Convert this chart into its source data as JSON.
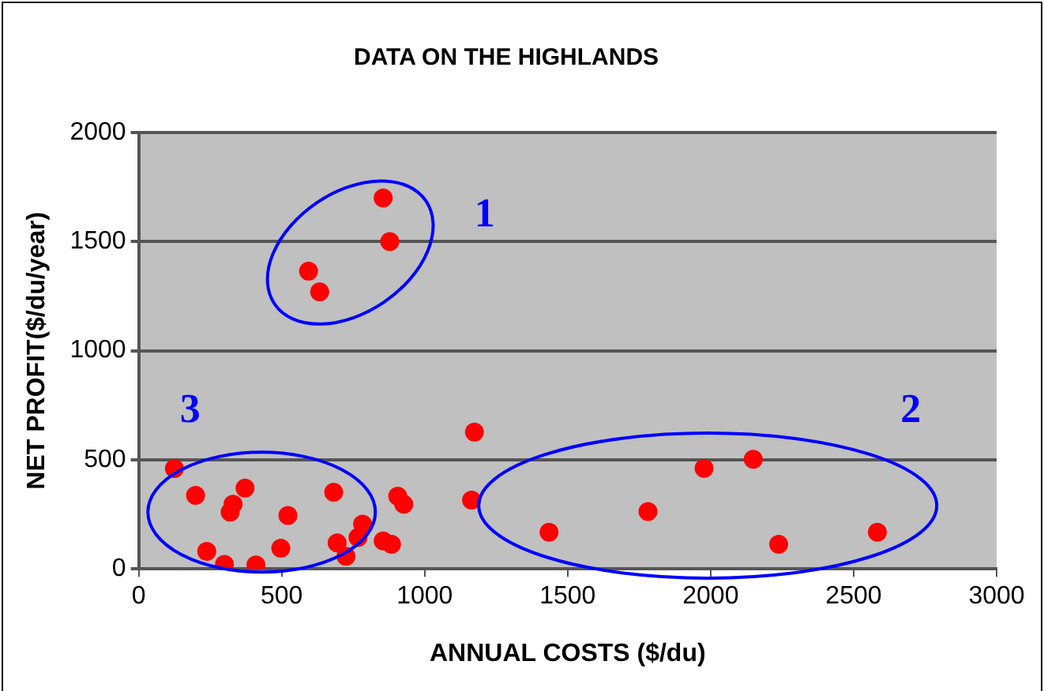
{
  "chart_data": {
    "type": "scatter",
    "title": "DATA ON THE HIGHLANDS",
    "xlabel": "ANNUAL COSTS ($/du)",
    "ylabel": "NET PROFIT($/du/year)",
    "x": [
      855,
      878,
      594,
      633,
      125,
      199,
      372,
      330,
      320,
      522,
      682,
      238,
      300,
      410,
      497,
      694,
      725,
      767,
      783,
      855,
      884,
      906,
      927,
      1174,
      1164,
      1435,
      1977,
      2149,
      1781,
      2238,
      2583
    ],
    "series": [
      {
        "color": "#ff0000",
        "values": [
          1700,
          1500,
          1365,
          1270,
          460,
          337,
          370,
          296,
          260,
          245,
          351,
          80,
          21,
          18,
          95,
          119,
          58,
          144,
          205,
          128,
          113,
          333,
          296,
          627,
          315,
          168,
          461,
          502,
          263,
          113,
          168
        ]
      }
    ],
    "xlim": [
      0,
      3000
    ],
    "xticks": [
      0,
      500,
      1000,
      1500,
      2000,
      2500,
      3000
    ],
    "ylim": [
      0,
      2000
    ],
    "yticks": [
      0,
      500,
      1000,
      1500,
      2000
    ],
    "grid": "y",
    "legend": false,
    "marker": "circle",
    "annotations": [
      "1",
      "2",
      "3"
    ]
  }
}
